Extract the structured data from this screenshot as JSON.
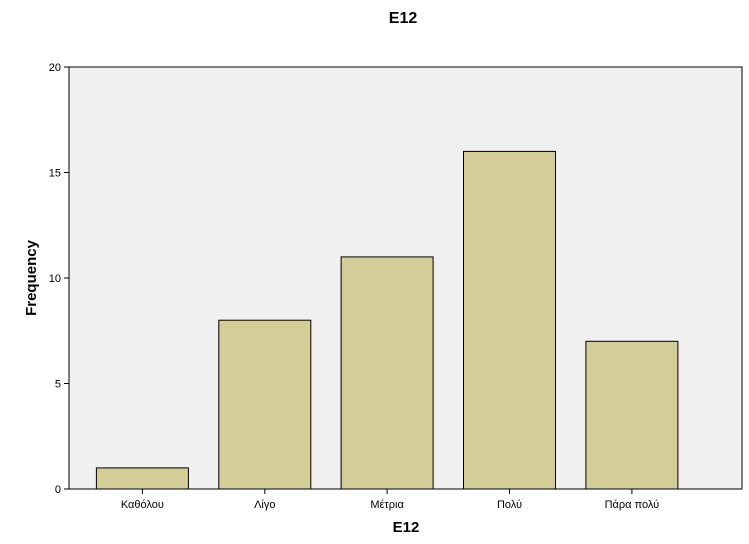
{
  "chart_data": {
    "type": "bar",
    "title": "E12",
    "xlabel": "E12",
    "ylabel": "Frequency",
    "categories": [
      "Καθόλου",
      "Λίγο",
      "Μέτρια",
      "Πολύ",
      "Πάρα πολύ"
    ],
    "values": [
      1,
      8,
      11,
      16,
      7
    ],
    "ylim": [
      0,
      20
    ],
    "yticks": [
      0,
      5,
      10,
      15,
      20
    ],
    "grid": false,
    "legend": "none",
    "colors": {
      "plot_background": "#f0f0f0",
      "bar_fill": "#d3ce97",
      "bar_stroke": "#000000",
      "axis": "#000000"
    }
  }
}
